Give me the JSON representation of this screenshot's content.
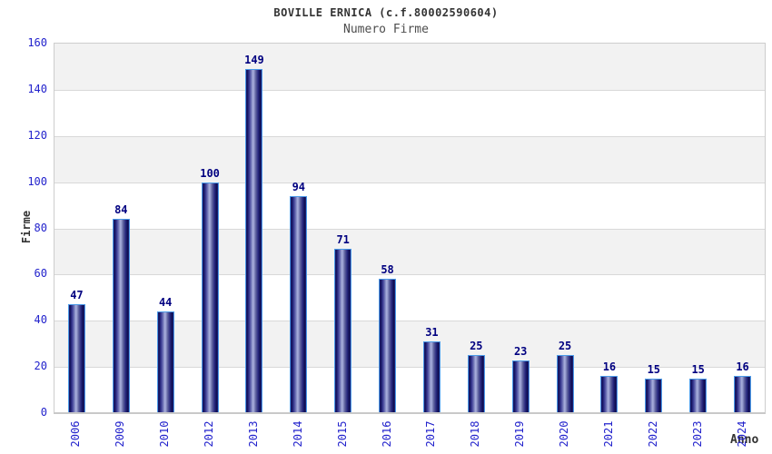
{
  "header": {
    "title": "BOVILLE ERNICA (c.f.80002590604)",
    "subtitle": "Numero Firme"
  },
  "axes": {
    "y_title": "Firme",
    "x_title": "Anno"
  },
  "colors": {
    "tick_label_blue": "#2222cc",
    "value_label_navy": "#000080",
    "title_gray": "#333333",
    "band_gray": "#f2f2f2",
    "band_white": "#ffffff",
    "gridline": "#d8d8d8",
    "bar_border_blue": "#4c9be8",
    "bar_dark_navy": "#0f0f55",
    "bar_light_center": "#a9b0dc"
  },
  "chart_data": {
    "type": "bar",
    "title": "BOVILLE ERNICA (c.f.80002590604)",
    "subtitle": "Numero Firme",
    "xlabel": "Anno",
    "ylabel": "Firme",
    "categories": [
      "2006",
      "2009",
      "2010",
      "2012",
      "2013",
      "2014",
      "2015",
      "2016",
      "2017",
      "2018",
      "2019",
      "2020",
      "2021",
      "2022",
      "2023",
      "2024"
    ],
    "values": [
      47,
      84,
      44,
      100,
      149,
      94,
      71,
      58,
      31,
      25,
      23,
      25,
      16,
      15,
      15,
      16
    ],
    "ylim": [
      0,
      160
    ],
    "ytick_step": 20,
    "grid": "horizontal-bands",
    "legend": "none",
    "value_labels": "above-bars"
  }
}
